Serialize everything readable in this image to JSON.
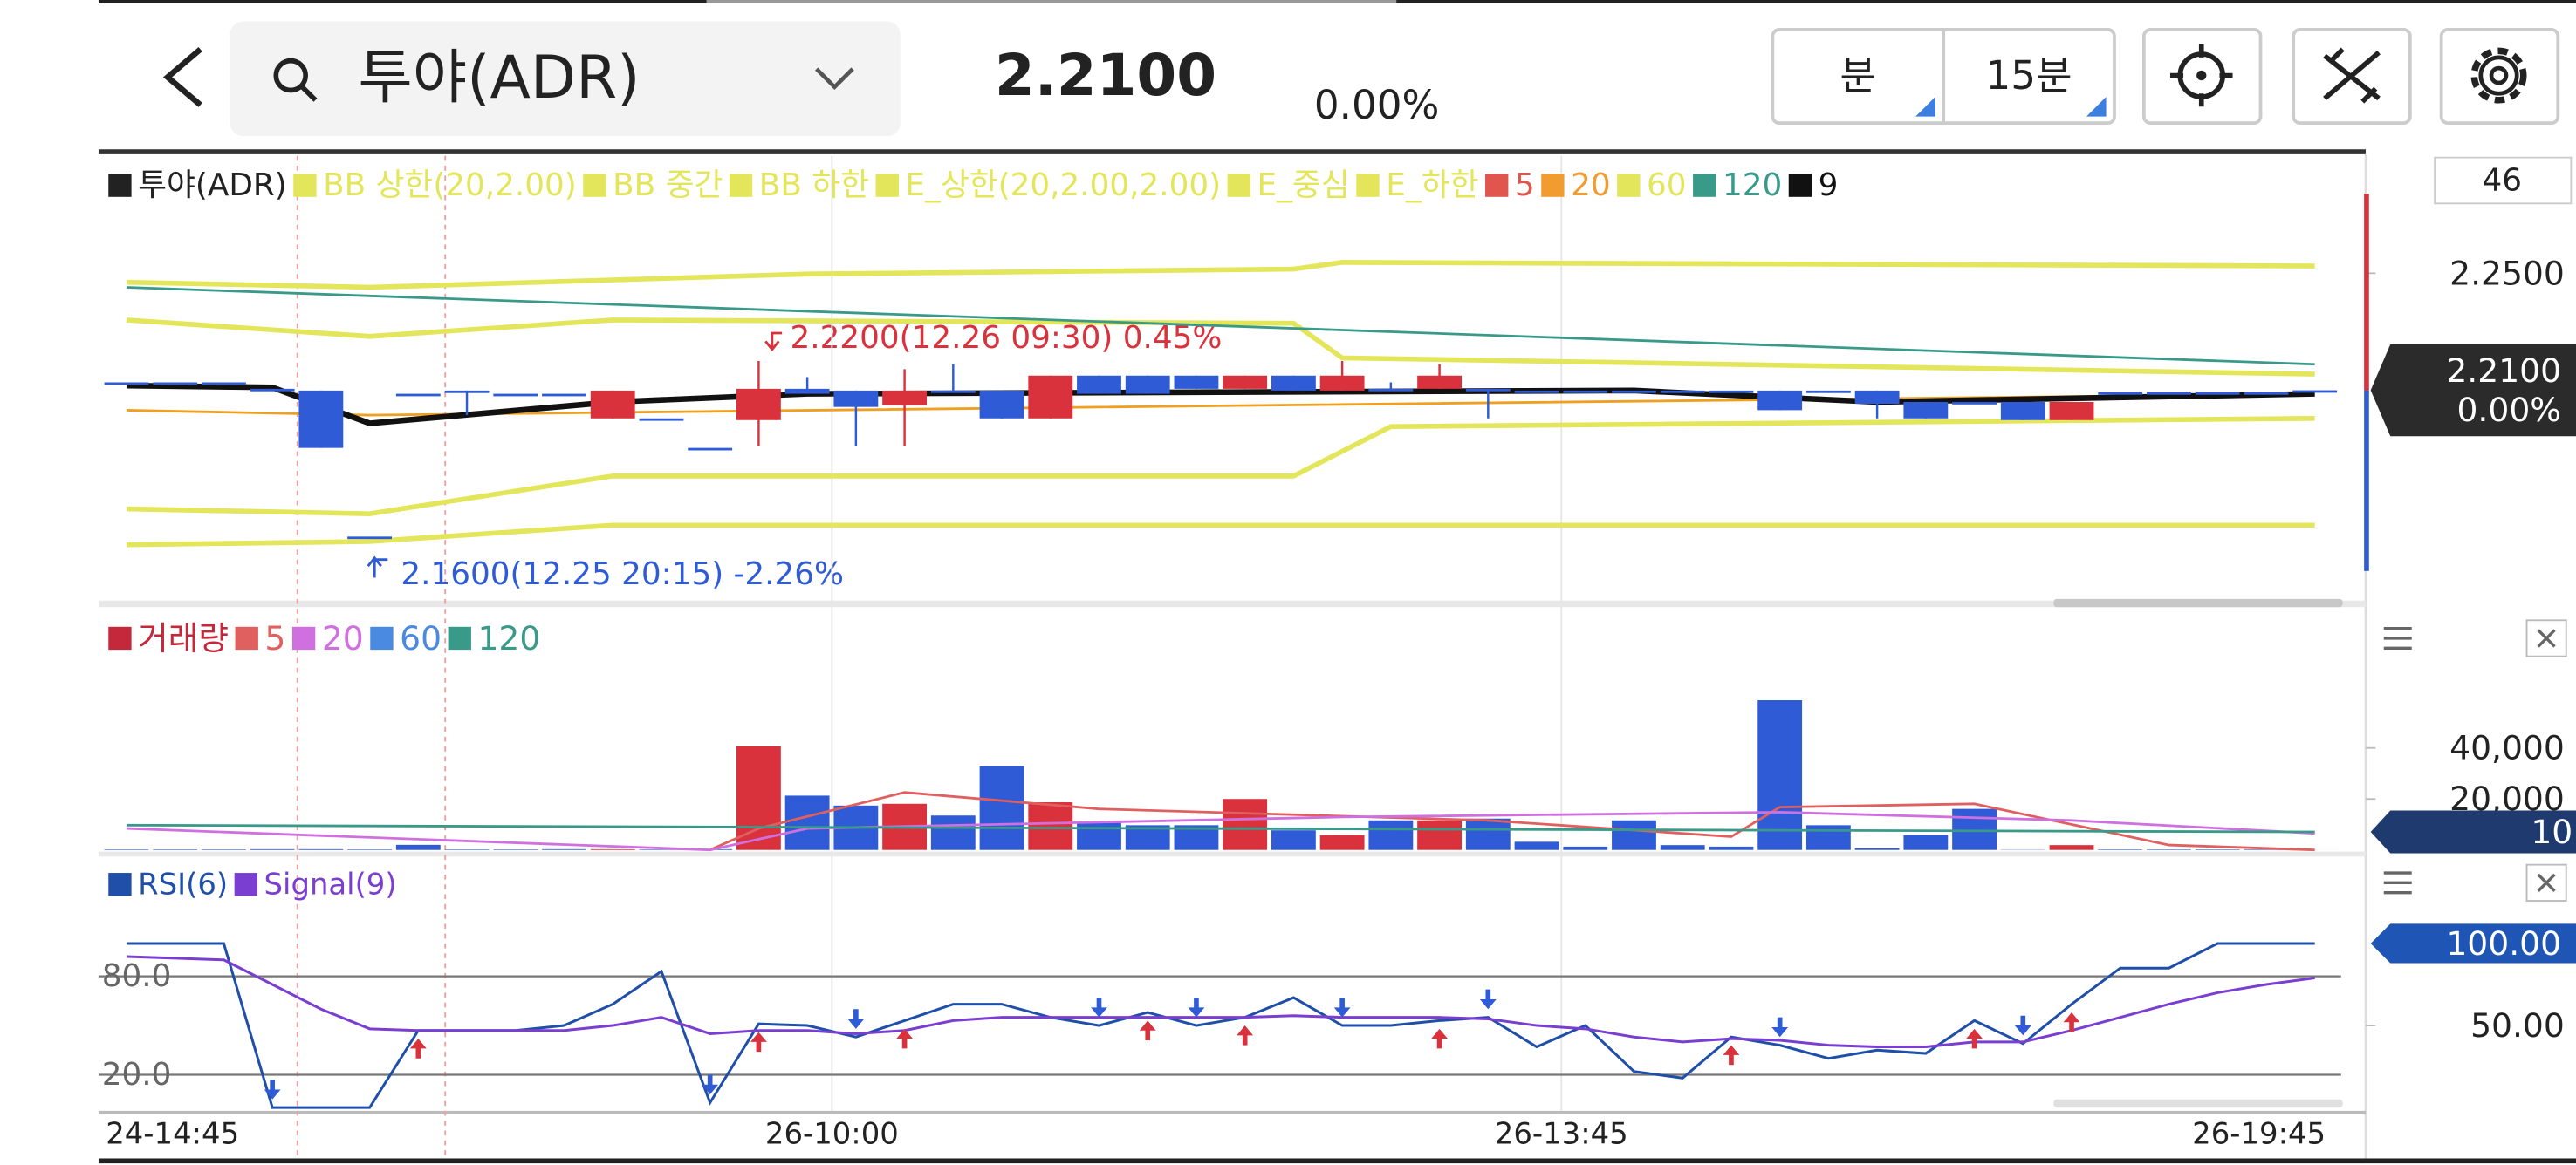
{
  "header": {
    "title": "투야(ADR)",
    "price": "2.2100",
    "change": "0.00%",
    "buttons": [
      "분",
      "15분"
    ]
  },
  "chart_data": [
    {
      "type": "candlestick",
      "legend": [
        {
          "name": "투야(ADR)",
          "color": "#222222"
        },
        {
          "name": "BB 상한(20,2.00)",
          "color": "#e3e65a"
        },
        {
          "name": "BB 중간",
          "color": "#e3e65a"
        },
        {
          "name": "BB 하한",
          "color": "#e3e65a"
        },
        {
          "name": "E_상한(20,2.00,2.00)",
          "color": "#e3e65a"
        },
        {
          "name": "E_중심",
          "color": "#e3e65a"
        },
        {
          "name": "E_하한",
          "color": "#e3e65a"
        },
        {
          "name": "5",
          "color": "#e0564f"
        },
        {
          "name": "20",
          "color": "#f29b2e"
        },
        {
          "name": "60",
          "color": "#e3e65a"
        },
        {
          "name": "120",
          "color": "#3a9a8a"
        },
        {
          "name": "9",
          "color": "#111111"
        }
      ],
      "categories": [
        "24-14:45",
        null,
        null,
        null,
        null,
        null,
        null,
        null,
        null,
        null,
        null,
        null,
        null,
        null,
        "26-10:00",
        null,
        null,
        null,
        null,
        null,
        null,
        null,
        null,
        null,
        null,
        null,
        null,
        null,
        null,
        "26-13:45",
        null,
        null,
        null,
        null,
        null,
        null,
        null,
        null,
        null,
        null,
        null,
        null,
        null,
        null,
        "26-19:45",
        null
      ],
      "open": [
        2.2127,
        2.2127,
        2.2127,
        2.2105,
        2.2099,
        2.16,
        2.2088,
        2.2099,
        2.2088,
        2.2088,
        2.2004,
        2.2004,
        2.1903,
        2.1998,
        2.2105,
        2.2099,
        2.2049,
        2.2099,
        2.2099,
        2.2004,
        2.215,
        2.215,
        2.215,
        2.2105,
        2.215,
        2.2099,
        2.2105,
        2.2105,
        2.2105,
        2.2099,
        2.2099,
        2.2099,
        2.2099,
        2.2099,
        2.2099,
        2.2099,
        2.2099,
        2.206,
        2.206,
        2.206,
        2.1998,
        2.2093,
        2.2093,
        2.2093,
        2.2093,
        2.21
      ],
      "high": [
        2.2127,
        2.2127,
        2.2127,
        2.2105,
        2.2099,
        2.16,
        2.2088,
        2.2099,
        2.2088,
        2.2088,
        2.2099,
        2.2004,
        2.1903,
        2.22,
        2.2145,
        2.2099,
        2.2172,
        2.2189,
        2.2099,
        2.215,
        2.215,
        2.215,
        2.215,
        2.215,
        2.215,
        2.22,
        2.2127,
        2.2189,
        2.2105,
        2.2099,
        2.2099,
        2.2099,
        2.2099,
        2.2099,
        2.2099,
        2.2099,
        2.2099,
        2.206,
        2.206,
        2.206,
        2.206,
        2.2093,
        2.2093,
        2.2093,
        2.2093,
        2.21
      ],
      "low": [
        2.2127,
        2.2127,
        2.2127,
        2.2105,
        2.1903,
        2.16,
        2.2088,
        2.2015,
        2.2088,
        2.2088,
        2.2004,
        2.2004,
        2.1903,
        2.1908,
        2.2088,
        2.1908,
        2.1908,
        2.2099,
        2.2004,
        2.2004,
        2.2088,
        2.2088,
        2.2105,
        2.2105,
        2.2099,
        2.2099,
        2.2099,
        2.2105,
        2.2004,
        2.2099,
        2.2099,
        2.2099,
        2.2099,
        2.2099,
        2.2032,
        2.2099,
        2.2004,
        2.2004,
        2.206,
        2.1998,
        2.1998,
        2.2093,
        2.2093,
        2.2093,
        2.2093,
        2.21
      ],
      "close": [
        2.2127,
        2.2127,
        2.2127,
        2.2105,
        2.1903,
        2.16,
        2.2088,
        2.2093,
        2.2088,
        2.2088,
        2.2099,
        2.2004,
        2.1903,
        2.2105,
        2.2088,
        2.2043,
        2.2099,
        2.2099,
        2.2004,
        2.215,
        2.2088,
        2.2088,
        2.2105,
        2.215,
        2.2099,
        2.215,
        2.2105,
        2.215,
        2.2105,
        2.2099,
        2.2099,
        2.2099,
        2.2099,
        2.2099,
        2.2032,
        2.2099,
        2.2054,
        2.2004,
        2.206,
        2.1998,
        2.206,
        2.2093,
        2.2093,
        2.2093,
        2.2093,
        2.21
      ],
      "up_color": "#d9323c",
      "down_color": "#2f5bd6",
      "overlays": [
        {
          "color": "#e3e65a",
          "x": [
            0,
            5,
            14,
            24,
            25,
            45
          ],
          "values": [
            2.2469,
            2.2452,
            2.2497,
            2.2514,
            2.2537,
            2.2525
          ]
        },
        {
          "color": "#e3e65a",
          "x": [
            0,
            5,
            10,
            24,
            25,
            45
          ],
          "values": [
            2.234,
            2.2284,
            2.234,
            2.2329,
            2.2211,
            2.2155
          ]
        },
        {
          "color": "#e3e65a",
          "x": [
            0,
            5,
            10,
            24,
            26,
            45
          ],
          "values": [
            2.1695,
            2.1678,
            2.1807,
            2.1807,
            2.1976,
            2.2004
          ]
        },
        {
          "color": "#e3e65a",
          "x": [
            0,
            5,
            10,
            45
          ],
          "values": [
            2.1572,
            2.1583,
            2.1639,
            2.1639
          ]
        },
        {
          "color": "#f0a020",
          "x": [
            0,
            5,
            45
          ],
          "values": [
            2.2032,
            2.2015,
            2.2088
          ]
        },
        {
          "color": "#3a9a8a",
          "x": [
            0,
            45
          ],
          "values": [
            2.2452,
            2.2189
          ]
        },
        {
          "color": "#111111",
          "x": [
            0,
            3,
            5,
            10,
            14,
            31,
            36,
            45
          ],
          "values": [
            2.2116,
            2.211,
            2.1987,
            2.206,
            2.2088,
            2.2099,
            2.206,
            2.2088
          ]
        }
      ],
      "ylim": [
        2.1387,
        2.2901
      ],
      "yticks": [
        {
          "value": 2.25,
          "label": "2.2500"
        }
      ],
      "bar_count": 46,
      "last_tag": {
        "value": 2.21,
        "label": "2.2100"
      },
      "last_change": "0.00%",
      "high_label": "2.2200(12.26 09:30) 0.45%",
      "low_label": "2.1600(12.25 20:15) -2.26%"
    },
    {
      "type": "bar",
      "legend": [
        {
          "name": "거래량",
          "color": "#c4283a"
        },
        {
          "name": "5",
          "color": "#e06060"
        },
        {
          "name": "20",
          "color": "#d070e0"
        },
        {
          "name": "60",
          "color": "#4a8ae0"
        },
        {
          "name": "120",
          "color": "#3a9a8a"
        }
      ],
      "values": [
        200,
        200,
        200,
        300,
        300,
        200,
        2000,
        200,
        200,
        300,
        300,
        200,
        300,
        40600,
        21300,
        17400,
        18100,
        13500,
        32900,
        18700,
        11000,
        9700,
        9700,
        20000,
        7700,
        5800,
        11600,
        11600,
        12300,
        3200,
        1300,
        11600,
        1900,
        1300,
        58700,
        9700,
        600,
        5800,
        16100,
        100,
        1900,
        200,
        200,
        200,
        200,
        10
      ],
      "overlays": [
        {
          "color": "#e06060",
          "x": [
            12,
            13,
            16,
            20,
            28,
            33,
            34,
            38,
            42,
            45
          ],
          "values": [
            0,
            8400,
            22600,
            16100,
            11600,
            5200,
            16800,
            18100,
            1900,
            0
          ]
        },
        {
          "color": "#d070e0",
          "x": [
            0,
            12,
            14,
            25,
            34,
            40,
            45
          ],
          "values": [
            8400,
            0,
            8400,
            12900,
            14800,
            11600,
            6500
          ]
        },
        {
          "color": "#3a9a8a",
          "x": [
            0,
            45
          ],
          "values": [
            9700,
            7100
          ]
        }
      ],
      "ylim": [
        0,
        92000
      ],
      "yticks": [
        {
          "value": 40000,
          "label": "40,000"
        },
        {
          "value": 20000,
          "label": "20,000"
        }
      ],
      "last_tag": 10
    },
    {
      "type": "line",
      "legend": [
        {
          "name": "RSI(6)",
          "color": "#1f4fa8"
        },
        {
          "name": "Signal(9)",
          "color": "#7a3fd0"
        }
      ],
      "series": [
        {
          "name": "RSI(6)",
          "color": "#1f4fa8",
          "values": [
            100,
            100,
            100,
            0,
            0,
            0,
            47,
            47,
            47,
            50,
            63,
            83,
            3,
            51,
            50,
            43,
            53,
            63,
            63,
            55,
            50,
            58,
            50,
            55,
            67,
            50,
            50,
            53,
            55,
            37,
            50,
            22,
            18,
            43,
            38,
            30,
            35,
            33,
            53,
            39,
            63,
            85,
            85,
            100,
            100,
            100
          ]
        },
        {
          "name": "Signal(9)",
          "color": "#7a3fd0",
          "values": [
            92,
            91,
            90,
            75,
            60,
            48,
            47,
            47,
            47,
            47,
            50,
            55,
            45,
            47,
            47,
            45,
            47,
            53,
            55,
            55,
            55,
            55,
            55,
            55,
            56,
            55,
            55,
            55,
            54,
            50,
            48,
            43,
            40,
            42,
            41,
            38,
            37,
            37,
            40,
            40,
            47,
            55,
            63,
            70,
            75,
            79
          ]
        }
      ],
      "ylim": [
        -3,
        150
      ],
      "yticks": [
        {
          "value": 80,
          "label": "80.0"
        },
        {
          "value": 20,
          "label": "20.0"
        }
      ],
      "y2lim": [
        -3,
        150
      ],
      "y2ticks": [
        {
          "value": 50,
          "label": "50.00"
        }
      ],
      "last_tag": {
        "value": 100,
        "label": "100.00"
      },
      "buy": [
        6,
        13,
        16,
        21,
        23,
        27,
        33,
        38,
        40
      ],
      "sell": [
        3,
        12,
        15,
        20,
        22,
        25,
        28,
        34,
        39
      ]
    }
  ]
}
